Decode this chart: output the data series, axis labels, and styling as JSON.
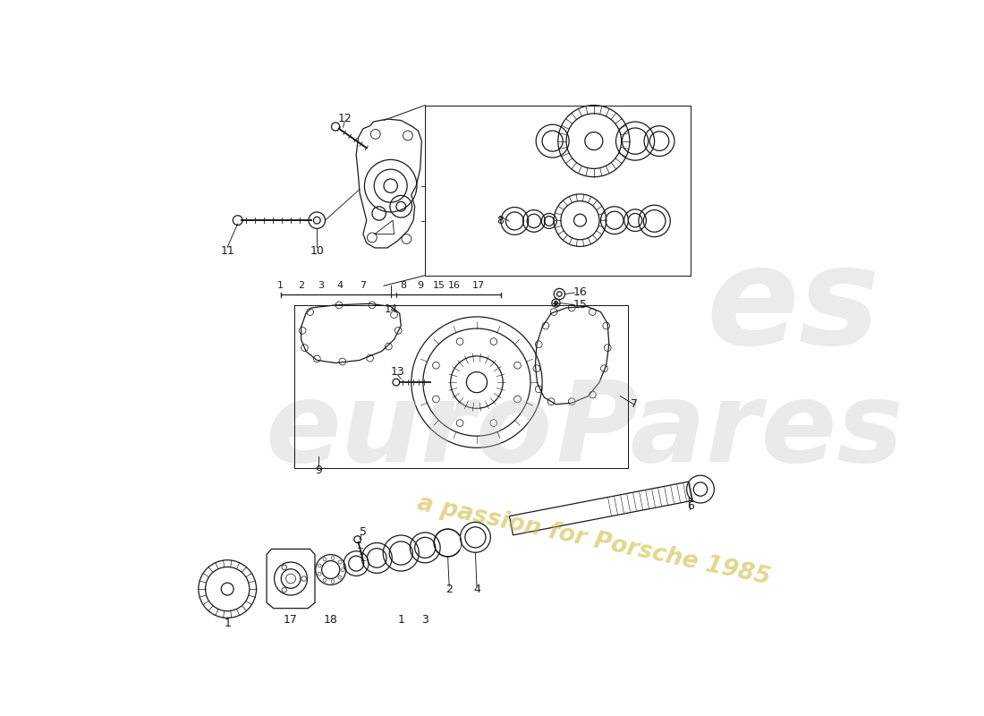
{
  "bg_color": "#ffffff",
  "line_color": "#1a1a1a",
  "watermark_gray": "#c8c8c8",
  "watermark_yellow": "#c8b830",
  "fig_width": 11.0,
  "fig_height": 8.0,
  "dpi": 100,
  "index_left_nums": [
    "1",
    "2",
    "3",
    "4",
    "7"
  ],
  "index_right_nums": [
    "8",
    "9",
    "15",
    "16",
    "17"
  ],
  "index_label": "14"
}
